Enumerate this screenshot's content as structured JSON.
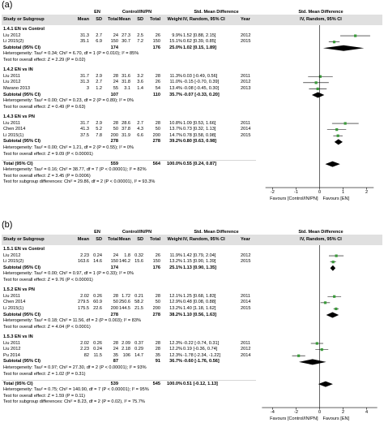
{
  "panels": [
    {
      "label": "(a)",
      "head": {
        "group1": "EN",
        "group2": "Control/IN/PN",
        "smd": "Std. Mean Difference",
        "smd_plot": "Std. Mean Difference",
        "study": "Study or Subgroup",
        "mean1": "Mean",
        "sd1": "SD",
        "total1": "Total",
        "mean2": "Mean",
        "sd2": "SD",
        "total2": "Total",
        "weight": "Weight",
        "ci": "IV, Random, 95% CI",
        "year": "Year",
        "ci_plot": "IV, Random, 95% CI"
      },
      "rows": [
        {
          "k": "sub",
          "text": "1.4.1 EN vs Control"
        },
        {
          "k": "st",
          "name": "Liu 2012",
          "m1": "31.3",
          "s1": "2.7",
          "n1": "24",
          "m2": "27.3",
          "s2": "2.5",
          "n2": "26",
          "w": "9.9%",
          "ci": "1.52 [0.88, 2.15]",
          "yr": "2012",
          "est": 1.52,
          "lo": 0.88,
          "hi": 2.15
        },
        {
          "k": "st",
          "name": "Li 2015(2)",
          "m1": "35.1",
          "s1": "6.9",
          "n1": "150",
          "m2": "30.7",
          "s2": "7.2",
          "n2": "150",
          "w": "15.1%",
          "ci": "0.62 [0.39, 0.85]",
          "yr": "2015",
          "est": 0.62,
          "lo": 0.39,
          "hi": 0.85
        },
        {
          "k": "tot",
          "name": "Subtotal (95% CI)",
          "n1": "174",
          "n2": "176",
          "w": "25.0%",
          "ci": "1.02 [0.15, 1.89]",
          "est": 1.02,
          "lo": 0.15,
          "hi": 1.89
        },
        {
          "k": "note",
          "text": "Heterogeneity: Tau² = 0.34; Chi² = 6.70, df = 1 (P = 0.010); I² = 85%"
        },
        {
          "k": "note",
          "text": "Test for overall effect: Z = 2.29 (P = 0.02)"
        },
        {
          "k": "gap"
        },
        {
          "k": "sub",
          "text": "1.4.2 EN vs IN"
        },
        {
          "k": "st",
          "name": "Liu 2011",
          "m1": "31.7",
          "s1": "2.9",
          "n1": "28",
          "m2": "31.6",
          "s2": "3.2",
          "n2": "28",
          "w": "11.3%",
          "ci": "0.03 [-0.49, 0.56]",
          "yr": "2011",
          "est": 0.03,
          "lo": -0.49,
          "hi": 0.56
        },
        {
          "k": "st",
          "name": "Liu 2012",
          "m1": "31.3",
          "s1": "2.7",
          "n1": "24",
          "m2": "31.8",
          "s2": "3.6",
          "n2": "26",
          "w": "11.0%",
          "ci": "-0.15 [-0.70, 0.39]",
          "yr": "2012",
          "est": -0.15,
          "lo": -0.7,
          "hi": 0.39
        },
        {
          "k": "st",
          "name": "Marano 2013",
          "m1": "3",
          "s1": "1.2",
          "n1": "55",
          "m2": "3.1",
          "s2": "1.4",
          "n2": "54",
          "w": "13.4%",
          "ci": "-0.08 [-0.45, 0.30]",
          "yr": "2013",
          "est": -0.08,
          "lo": -0.45,
          "hi": 0.3
        },
        {
          "k": "tot",
          "name": "Subtotal (95% CI)",
          "n1": "107",
          "n2": "110",
          "w": "35.7%",
          "ci": "-0.07 [-0.33, 0.20]",
          "est": -0.07,
          "lo": -0.33,
          "hi": 0.2
        },
        {
          "k": "note",
          "text": "Heterogeneity: Tau² = 0.00; Chi² = 0.23, df = 2 (P = 0.89); I² = 0%"
        },
        {
          "k": "note",
          "text": "Test for overall effect: Z = 0.49 (P = 0.63)"
        },
        {
          "k": "gap"
        },
        {
          "k": "sub",
          "text": "1.4.3 EN vs PN"
        },
        {
          "k": "st",
          "name": "Liu 2011",
          "m1": "31.7",
          "s1": "2.9",
          "n1": "28",
          "m2": "28.6",
          "s2": "2.7",
          "n2": "28",
          "w": "10.8%",
          "ci": "1.09 [0.53, 1.66]",
          "yr": "2011",
          "est": 1.09,
          "lo": 0.53,
          "hi": 1.66
        },
        {
          "k": "st",
          "name": "Chen 2014",
          "m1": "41.3",
          "s1": "5.2",
          "n1": "50",
          "m2": "37.8",
          "s2": "4.3",
          "n2": "50",
          "w": "13.7%",
          "ci": "0.73 [0.32, 1.13]",
          "yr": "2014",
          "est": 0.73,
          "lo": 0.32,
          "hi": 1.13
        },
        {
          "k": "st",
          "name": "Li 2015(1)",
          "m1": "37.5",
          "s1": "7.8",
          "n1": "200",
          "m2": "31.9",
          "s2": "6.6",
          "n2": "200",
          "w": "14.7%",
          "ci": "0.78 [0.58, 0.98]",
          "yr": "2015",
          "est": 0.78,
          "lo": 0.58,
          "hi": 0.98
        },
        {
          "k": "tot",
          "name": "Subtotal (95% CI)",
          "n1": "278",
          "n2": "278",
          "w": "39.2%",
          "ci": "0.80 [0.63, 0.98]",
          "est": 0.8,
          "lo": 0.63,
          "hi": 0.98
        },
        {
          "k": "note",
          "text": "Heterogeneity: Tau² = 0.00; Chi² = 1.21, df = 2 (P = 0.55); I² = 0%"
        },
        {
          "k": "note",
          "text": "Test for overall effect: Z = 9.09 (P < 0.00001)"
        },
        {
          "k": "gap"
        },
        {
          "k": "tot",
          "name": "Total (95% CI)",
          "n1": "559",
          "n2": "564",
          "w": "100.0%",
          "ci": "0.55 [0.24, 0.87]",
          "est": 0.55,
          "lo": 0.24,
          "hi": 0.87
        },
        {
          "k": "note",
          "text": "Heterogeneity: Tau² = 0.16; Chi² = 38.77, df = 7 (P < 0.00001); I² = 82%"
        },
        {
          "k": "note",
          "text": "Test for overall effect: Z = 3.45 (P = 0.0006)"
        },
        {
          "k": "note",
          "text": "Test for subgroup differences: Chi² = 29.86, df = 2 (P < 0.00001), I² = 93.3%"
        }
      ],
      "axis": {
        "ticks": [
          -2,
          -1,
          0,
          1,
          2
        ],
        "tick_labels": [
          "-2",
          "-1",
          "0",
          "1",
          "2"
        ],
        "min": -2.6,
        "max": 2.6,
        "left_label": "Favours [Control/IN/PN]",
        "right_label": "Favours [EN]"
      }
    },
    {
      "label": "(b)",
      "head": {
        "group1": "EN",
        "group2": "Control/IN/PN",
        "smd": "Std. Mean Difference",
        "smd_plot": "Std. Mean Difference",
        "study": "Study or Subgroup",
        "mean1": "Mean",
        "sd1": "SD",
        "total1": "Total",
        "mean2": "Mean",
        "sd2": "SD",
        "total2": "Total",
        "weight": "Weight",
        "ci": "IV, Random, 95% CI",
        "year": "Year",
        "ci_plot": "IV, Random, 95% CI"
      },
      "rows": [
        {
          "k": "sub",
          "text": "1.5.1 EN vs Control"
        },
        {
          "k": "st",
          "name": "Liu 2012",
          "m1": "2.23",
          "s1": "0.24",
          "n1": "24",
          "m2": "1.8",
          "s2": "0.32",
          "n2": "26",
          "w": "11.9%",
          "ci": "1.42 [0.79, 2.04]",
          "yr": "2012",
          "est": 1.42,
          "lo": 0.79,
          "hi": 2.04
        },
        {
          "k": "st",
          "name": "Li 2015(2)",
          "m1": "163.6",
          "s1": "14.6",
          "n1": "150",
          "m2": "146.2",
          "s2": "15.6",
          "n2": "150",
          "w": "13.2%",
          "ci": "1.15 [0.90, 1.39]",
          "yr": "2015",
          "est": 1.15,
          "lo": 0.9,
          "hi": 1.39
        },
        {
          "k": "tot",
          "name": "Subtotal (95% CI)",
          "n1": "174",
          "n2": "176",
          "w": "25.1%",
          "ci": "1.13 [0.90, 1.35]",
          "est": 1.13,
          "lo": 0.9,
          "hi": 1.35
        },
        {
          "k": "note",
          "text": "Heterogeneity: Tau² = 0.00; Chi² = 0.97, df = 1 (P = 0.33); I² = 0%"
        },
        {
          "k": "note",
          "text": "Test for overall effect: Z = 9.76 (P < 0.00001)"
        },
        {
          "k": "gap"
        },
        {
          "k": "sub",
          "text": "1.5.2 EN vs PN"
        },
        {
          "k": "st",
          "name": "Liu 2011",
          "m1": "2.02",
          "s1": "0.26",
          "n1": "28",
          "m2": "1.72",
          "s2": "0.21",
          "n2": "28",
          "w": "12.1%",
          "ci": "1.25 [0.68, 1.83]",
          "yr": "2011",
          "est": 1.25,
          "lo": 0.68,
          "hi": 1.83
        },
        {
          "k": "st",
          "name": "Chen 2014",
          "m1": "279.5",
          "s1": "60.9",
          "n1": "50",
          "m2": "250.6",
          "s2": "58.2",
          "n2": "50",
          "w": "12.9%",
          "ci": "0.48 [0.08, 0.88]",
          "yr": "2014",
          "est": 0.48,
          "lo": 0.08,
          "hi": 0.88
        },
        {
          "k": "st",
          "name": "Li 2015(1)",
          "m1": "175.5",
          "s1": "22.6",
          "n1": "200",
          "m2": "144.5",
          "s2": "21.5",
          "n2": "200",
          "w": "13.2%",
          "ci": "1.40 [1.18, 1.62]",
          "yr": "2015",
          "est": 1.4,
          "lo": 1.18,
          "hi": 1.62
        },
        {
          "k": "tot",
          "name": "Subtotal (95% CI)",
          "n1": "278",
          "n2": "278",
          "w": "38.2%",
          "ci": "1.10 [0.56, 1.63]",
          "est": 1.1,
          "lo": 0.56,
          "hi": 1.63
        },
        {
          "k": "note",
          "text": "Heterogeneity: Tau² = 0.18; Chi² = 11.56, df = 2 (P = 0.003); I² = 83%"
        },
        {
          "k": "note",
          "text": "Test for overall effect: Z = 4.04 (P < 0.0001)"
        },
        {
          "k": "gap"
        },
        {
          "k": "sub",
          "text": "1.5.3 EN vs IN"
        },
        {
          "k": "st",
          "name": "Liu 2011",
          "m1": "2.02",
          "s1": "0.26",
          "n1": "28",
          "m2": "2.09",
          "s2": "0.37",
          "n2": "28",
          "w": "12.3%",
          "ci": "-0.22 [-0.74, 0.31]",
          "yr": "2011",
          "est": -0.22,
          "lo": -0.74,
          "hi": 0.31
        },
        {
          "k": "st",
          "name": "Liu 2012",
          "m1": "2.23",
          "s1": "0.24",
          "n1": "24",
          "m2": "2.18",
          "s2": "0.29",
          "n2": "28",
          "w": "12.2%",
          "ci": "0.19 [-0.36, 0.74]",
          "yr": "2012",
          "est": 0.19,
          "lo": -0.36,
          "hi": 0.74
        },
        {
          "k": "st",
          "name": "Pu 2014",
          "m1": "82",
          "s1": "11.5",
          "n1": "35",
          "m2": "106",
          "s2": "14.7",
          "n2": "35",
          "w": "12.3%",
          "ci": "-1.78 [-2.34, -1.22]",
          "yr": "2014",
          "est": -1.78,
          "lo": -2.34,
          "hi": -1.22
        },
        {
          "k": "tot",
          "name": "Subtotal (95% CI)",
          "n1": "87",
          "n2": "91",
          "w": "36.7%",
          "ci": "-0.60 [-1.76, 0.56]",
          "est": -0.6,
          "lo": -1.76,
          "hi": 0.56
        },
        {
          "k": "note",
          "text": "Heterogeneity: Tau² = 0.97; Chi² = 27.30, df = 2 (P < 0.00001); I² = 93%"
        },
        {
          "k": "note",
          "text": "Test for overall effect: Z = 1.02 (P = 0.31)"
        },
        {
          "k": "gap"
        },
        {
          "k": "tot",
          "name": "Total (95% CI)",
          "n1": "539",
          "n2": "545",
          "w": "100.0%",
          "ci": "0.51 [-0.12, 1.13]",
          "est": 0.51,
          "lo": -0.12,
          "hi": 1.13
        },
        {
          "k": "note",
          "text": "Heterogeneity: Tau² = 0.75; Chi² = 140.90, df = 7 (P < 0.00001); I² = 95%"
        },
        {
          "k": "note",
          "text": "Test for overall effect: Z = 1.59 (P = 0.11)"
        },
        {
          "k": "note",
          "text": "Test for subgroup differences: Chi² = 8.23, df = 2 (P = 0.02), I² = 75.7%"
        }
      ],
      "axis": {
        "ticks": [
          -4,
          -2,
          0,
          2,
          4
        ],
        "tick_labels": [
          "-4",
          "-2",
          "0",
          "2",
          "4"
        ],
        "min": -5.2,
        "max": 5.2,
        "left_label": "Favours [Control/IN/PN]",
        "right_label": "Favours [EN]"
      }
    }
  ],
  "colors": {
    "study_marker": "#3a9a3a",
    "diamond": "#000000",
    "header_bg": "#e0e0e0"
  }
}
